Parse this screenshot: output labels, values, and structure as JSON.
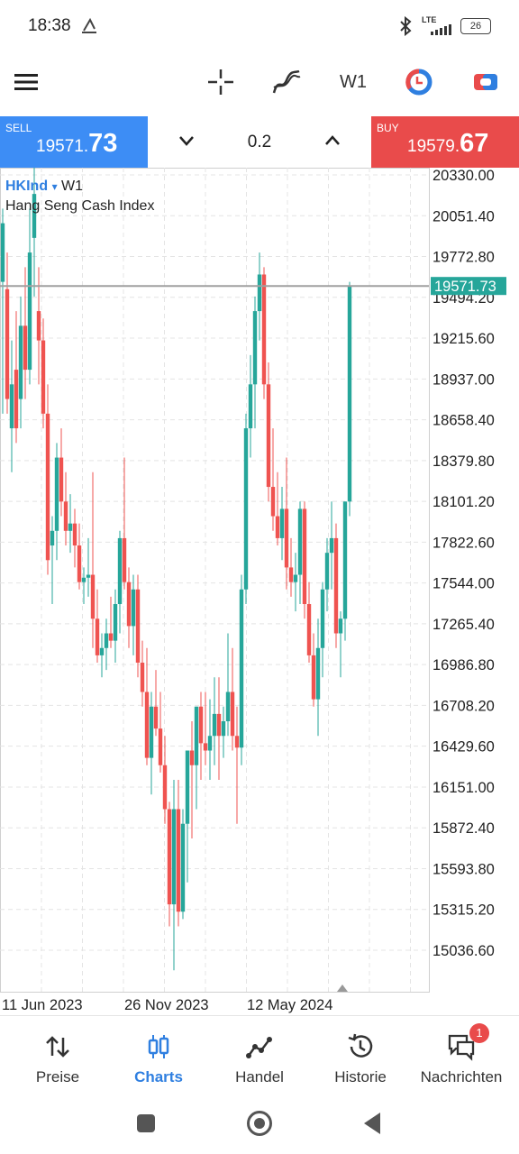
{
  "status": {
    "time": "18:38",
    "network": "LTE",
    "battery": "26"
  },
  "toolbar": {
    "timeframe": "W1",
    "icons": [
      "menu-icon",
      "crosshair-icon",
      "indicators-icon",
      "timeframe-button",
      "trade-clock-icon",
      "account-icon"
    ]
  },
  "trade": {
    "sell_label": "SELL",
    "sell_price_small": "19571.",
    "sell_price_big": "73",
    "buy_label": "BUY",
    "buy_price_small": "19579.",
    "buy_price_big": "67",
    "volume": "0.2"
  },
  "chart": {
    "symbol": "HKInd",
    "symbol_suffix": "▾",
    "timeframe": "W1",
    "description": "Hang Seng Cash Index",
    "current_price": "19571.73",
    "colors": {
      "up": "#26a69a",
      "down": "#ef5350",
      "price_line": "#a0a0a0",
      "price_tag": "#26a69a"
    }
  },
  "chart_data": {
    "type": "candlestick",
    "title": "Hang Seng Cash Index",
    "y_ticks": [
      "20330.00",
      "20051.40",
      "19772.80",
      "19494.20",
      "19215.60",
      "18937.00",
      "18658.40",
      "18379.80",
      "18101.20",
      "17822.60",
      "17544.00",
      "17265.40",
      "16986.80",
      "16708.20",
      "16429.60",
      "16151.00",
      "15872.40",
      "15593.80",
      "15315.20",
      "15036.60"
    ],
    "x_ticks": [
      "11 Jun 2023",
      "26 Nov 2023",
      "12 May 2024"
    ],
    "ylim": [
      14850,
      20400
    ],
    "last_price": 19571.73,
    "candles": [
      {
        "o": 19600,
        "h": 20100,
        "l": 18700,
        "c": 20000
      },
      {
        "o": 19550,
        "h": 19800,
        "l": 18700,
        "c": 18800
      },
      {
        "o": 18600,
        "h": 19200,
        "l": 18300,
        "c": 18900
      },
      {
        "o": 19000,
        "h": 19400,
        "l": 18500,
        "c": 18600
      },
      {
        "o": 18800,
        "h": 19500,
        "l": 18600,
        "c": 19300
      },
      {
        "o": 19300,
        "h": 19700,
        "l": 18800,
        "c": 19000
      },
      {
        "o": 19000,
        "h": 20100,
        "l": 18900,
        "c": 19800
      },
      {
        "o": 19900,
        "h": 20400,
        "l": 19500,
        "c": 20200
      },
      {
        "o": 19400,
        "h": 19700,
        "l": 18900,
        "c": 19200
      },
      {
        "o": 19200,
        "h": 19350,
        "l": 18600,
        "c": 18700
      },
      {
        "o": 18700,
        "h": 18900,
        "l": 17600,
        "c": 17700
      },
      {
        "o": 17800,
        "h": 18000,
        "l": 17400,
        "c": 17900
      },
      {
        "o": 17900,
        "h": 18500,
        "l": 17700,
        "c": 18400
      },
      {
        "o": 18400,
        "h": 18600,
        "l": 18000,
        "c": 18100
      },
      {
        "o": 18100,
        "h": 18300,
        "l": 17800,
        "c": 17900
      },
      {
        "o": 17900,
        "h": 18150,
        "l": 17750,
        "c": 17950
      },
      {
        "o": 17950,
        "h": 18050,
        "l": 17650,
        "c": 17800
      },
      {
        "o": 17800,
        "h": 17950,
        "l": 17500,
        "c": 17550
      },
      {
        "o": 17550,
        "h": 17650,
        "l": 17400,
        "c": 17580
      },
      {
        "o": 17580,
        "h": 17850,
        "l": 17450,
        "c": 17600
      },
      {
        "o": 17600,
        "h": 18300,
        "l": 17100,
        "c": 17300
      },
      {
        "o": 17300,
        "h": 17500,
        "l": 17000,
        "c": 17050
      },
      {
        "o": 17050,
        "h": 17200,
        "l": 16900,
        "c": 17100
      },
      {
        "o": 17100,
        "h": 17300,
        "l": 16950,
        "c": 17200
      },
      {
        "o": 17200,
        "h": 17450,
        "l": 17100,
        "c": 17150
      },
      {
        "o": 17150,
        "h": 17500,
        "l": 17000,
        "c": 17400
      },
      {
        "o": 17400,
        "h": 17900,
        "l": 17200,
        "c": 17850
      },
      {
        "o": 17850,
        "h": 18400,
        "l": 17500,
        "c": 17550
      },
      {
        "o": 17550,
        "h": 17650,
        "l": 17100,
        "c": 17250
      },
      {
        "o": 17250,
        "h": 17600,
        "l": 17050,
        "c": 17500
      },
      {
        "o": 17500,
        "h": 17600,
        "l": 16900,
        "c": 17000
      },
      {
        "o": 17000,
        "h": 17150,
        "l": 16700,
        "c": 16800
      },
      {
        "o": 16800,
        "h": 17100,
        "l": 16300,
        "c": 16350
      },
      {
        "o": 16350,
        "h": 16800,
        "l": 16100,
        "c": 16700
      },
      {
        "o": 16700,
        "h": 16950,
        "l": 16500,
        "c": 16550
      },
      {
        "o": 16550,
        "h": 16800,
        "l": 16250,
        "c": 16300
      },
      {
        "o": 16300,
        "h": 16500,
        "l": 15900,
        "c": 16000
      },
      {
        "o": 16000,
        "h": 16050,
        "l": 15200,
        "c": 15350
      },
      {
        "o": 15350,
        "h": 16200,
        "l": 14900,
        "c": 16000
      },
      {
        "o": 16000,
        "h": 16200,
        "l": 15200,
        "c": 15300
      },
      {
        "o": 15300,
        "h": 16000,
        "l": 15250,
        "c": 15900
      },
      {
        "o": 15900,
        "h": 16400,
        "l": 15500,
        "c": 16400
      },
      {
        "o": 16400,
        "h": 16600,
        "l": 15800,
        "c": 16300
      },
      {
        "o": 16300,
        "h": 16700,
        "l": 16000,
        "c": 16700
      },
      {
        "o": 16700,
        "h": 16800,
        "l": 16200,
        "c": 16450
      },
      {
        "o": 16450,
        "h": 16800,
        "l": 16300,
        "c": 16400
      },
      {
        "o": 16400,
        "h": 16750,
        "l": 16200,
        "c": 16500
      },
      {
        "o": 16500,
        "h": 16900,
        "l": 16300,
        "c": 16650
      },
      {
        "o": 16650,
        "h": 16900,
        "l": 16200,
        "c": 16500
      },
      {
        "o": 16500,
        "h": 16700,
        "l": 16350,
        "c": 16600
      },
      {
        "o": 16600,
        "h": 17200,
        "l": 16500,
        "c": 16800
      },
      {
        "o": 16800,
        "h": 17100,
        "l": 16400,
        "c": 16500
      },
      {
        "o": 16500,
        "h": 16700,
        "l": 15900,
        "c": 16420
      },
      {
        "o": 16420,
        "h": 17600,
        "l": 16300,
        "c": 17500
      },
      {
        "o": 17500,
        "h": 18700,
        "l": 17400,
        "c": 18600
      },
      {
        "o": 18600,
        "h": 19100,
        "l": 18400,
        "c": 18900
      },
      {
        "o": 18900,
        "h": 19500,
        "l": 18600,
        "c": 19400
      },
      {
        "o": 19400,
        "h": 19800,
        "l": 19200,
        "c": 19650
      },
      {
        "o": 19650,
        "h": 19700,
        "l": 18800,
        "c": 18900
      },
      {
        "o": 18900,
        "h": 19050,
        "l": 18100,
        "c": 18200
      },
      {
        "o": 18200,
        "h": 18600,
        "l": 17900,
        "c": 18000
      },
      {
        "o": 18000,
        "h": 18300,
        "l": 17800,
        "c": 17850
      },
      {
        "o": 17850,
        "h": 18200,
        "l": 17700,
        "c": 18050
      },
      {
        "o": 18050,
        "h": 18400,
        "l": 17500,
        "c": 17650
      },
      {
        "o": 17650,
        "h": 17850,
        "l": 17450,
        "c": 17550
      },
      {
        "o": 17550,
        "h": 17750,
        "l": 17350,
        "c": 17600
      },
      {
        "o": 17600,
        "h": 18100,
        "l": 17400,
        "c": 18050
      },
      {
        "o": 18050,
        "h": 18100,
        "l": 17300,
        "c": 17400
      },
      {
        "o": 17400,
        "h": 17550,
        "l": 17000,
        "c": 17050
      },
      {
        "o": 17050,
        "h": 17200,
        "l": 16700,
        "c": 16750
      },
      {
        "o": 16750,
        "h": 17300,
        "l": 16500,
        "c": 17100
      },
      {
        "o": 17100,
        "h": 17550,
        "l": 16900,
        "c": 17500
      },
      {
        "o": 17500,
        "h": 17850,
        "l": 17350,
        "c": 17750
      },
      {
        "o": 17750,
        "h": 18100,
        "l": 17500,
        "c": 17850
      },
      {
        "o": 17850,
        "h": 17950,
        "l": 17100,
        "c": 17200
      },
      {
        "o": 17200,
        "h": 17350,
        "l": 16900,
        "c": 17300
      },
      {
        "o": 17300,
        "h": 18100,
        "l": 17150,
        "c": 18100
      },
      {
        "o": 18100,
        "h": 19600,
        "l": 18000,
        "c": 19571.73
      }
    ]
  },
  "nav": {
    "items": [
      {
        "label": "Preise",
        "icon": "arrows-updown-icon"
      },
      {
        "label": "Charts",
        "icon": "candles-icon"
      },
      {
        "label": "Handel",
        "icon": "trend-icon"
      },
      {
        "label": "Historie",
        "icon": "history-icon"
      },
      {
        "label": "Nachrichten",
        "icon": "chat-icon",
        "badge": "1"
      }
    ],
    "active": "Charts"
  }
}
